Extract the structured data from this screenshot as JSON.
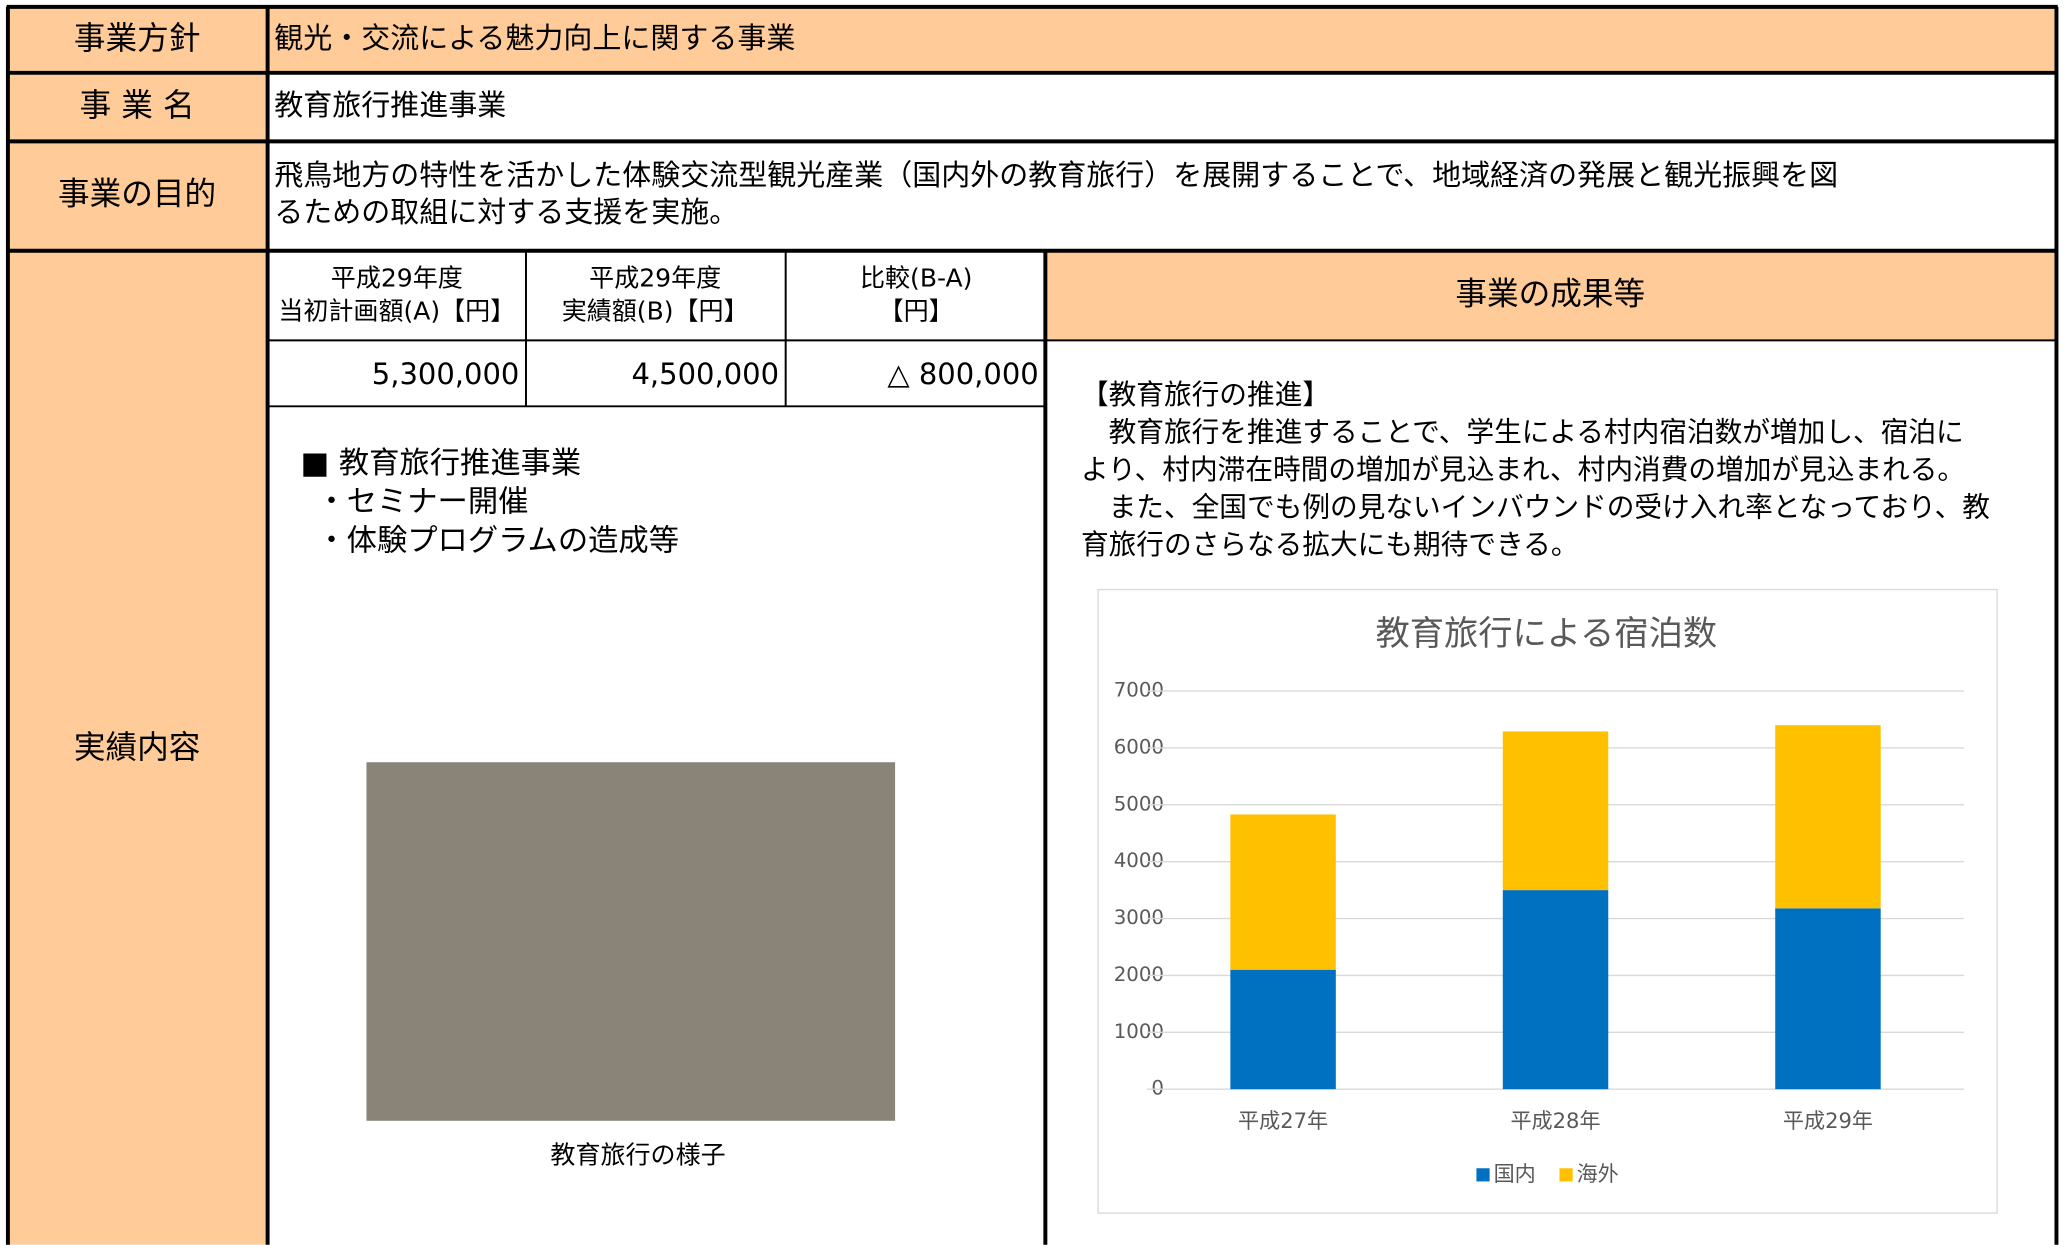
{
  "rows": [
    {
      "label": "事業方針",
      "value": [
        "観光・交流による魅力向上に関する事業"
      ]
    },
    {
      "label": "事 業 名",
      "value": [
        "教育旅行推進事業"
      ]
    },
    {
      "label": "事業の目的",
      "value": [
        "飛鳥地方の特性を活かした体験交流型観光産業（国内外の教育旅行）を展開することで、地域経済の発展と観光振興を図",
        "るための取組に対する支援を実施。"
      ]
    },
    {
      "label": "実績内容"
    }
  ],
  "budget": {
    "headers": [
      [
        "平成29年度",
        "当初計画額(A)【円】"
      ],
      [
        "平成29年度",
        "実績額(B)【円】"
      ],
      [
        "比較(B-A)",
        "【円】"
      ]
    ],
    "values": [
      "5,300,000",
      "4,500,000",
      "△ 800,000"
    ]
  },
  "activity": {
    "lines": [
      "■ 教育旅行推進事業",
      "・セミナー開催",
      "・体験プログラムの造成等"
    ],
    "caption": "教育旅行の様子"
  },
  "results": {
    "heading": "事業の成果等",
    "lines": [
      "【教育旅行の推進】",
      "　教育旅行を推進することで、学生による村内宿泊数が増加し、宿泊に",
      "より、村内滞在時間の増加が見込まれ、村内消費の増加が見込まれる。",
      "　また、全国でも例の見ないインバウンドの受け入れ率となっており、教",
      "育旅行のさらなる拡大にも期待できる。"
    ]
  },
  "chart_data": {
    "type": "stacked-bar",
    "title": "教育旅行による宿泊数",
    "categories": [
      "平成27年",
      "平成28年",
      "平成29年"
    ],
    "series": [
      {
        "name": "国内",
        "color": "#0070C0",
        "values": [
          2100,
          3500,
          3180
        ]
      },
      {
        "name": "海外",
        "color": "#FFC000",
        "values": [
          2730,
          2790,
          3220
        ]
      }
    ],
    "ylim": [
      0,
      7000
    ],
    "yticks": [
      0,
      1000,
      2000,
      3000,
      4000,
      5000,
      6000,
      7000
    ],
    "grid": true,
    "legend": "bottom"
  }
}
